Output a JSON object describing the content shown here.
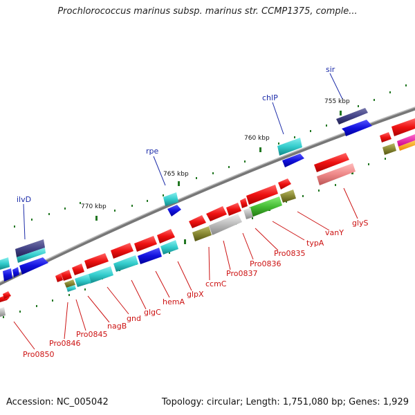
{
  "title": "Prochlorococcus marinus subsp. marinus str. CCMP1375, comple...",
  "footer": {
    "accession": "Accession: NC_005042",
    "topology": "Topology: circular; Length: 1,751,080 bp; Genes: 1,929"
  },
  "kbp_labels": [
    "755 kbp",
    "760 kbp",
    "765 kbp",
    "770 kbp"
  ],
  "outer_labels": [
    "sir",
    "chlP",
    "rpe",
    "ilvD"
  ],
  "inner_labels": [
    "glyS",
    "vanY",
    "typA",
    "Pro0835",
    "Pro0836",
    "Pro0837",
    "ccmC",
    "glpX",
    "hemA",
    "glgC",
    "gnd",
    "nagB",
    "Pro0845",
    "Pro0846",
    "Pro0850"
  ],
  "colors": {
    "red": "#ee1111",
    "blue": "#1111dd",
    "cyan": "#33cccc",
    "navy": "#444488",
    "green": "#44bb33",
    "olive": "#888833",
    "gray": "#bbbbbb",
    "pink": "#ee8888"
  }
}
